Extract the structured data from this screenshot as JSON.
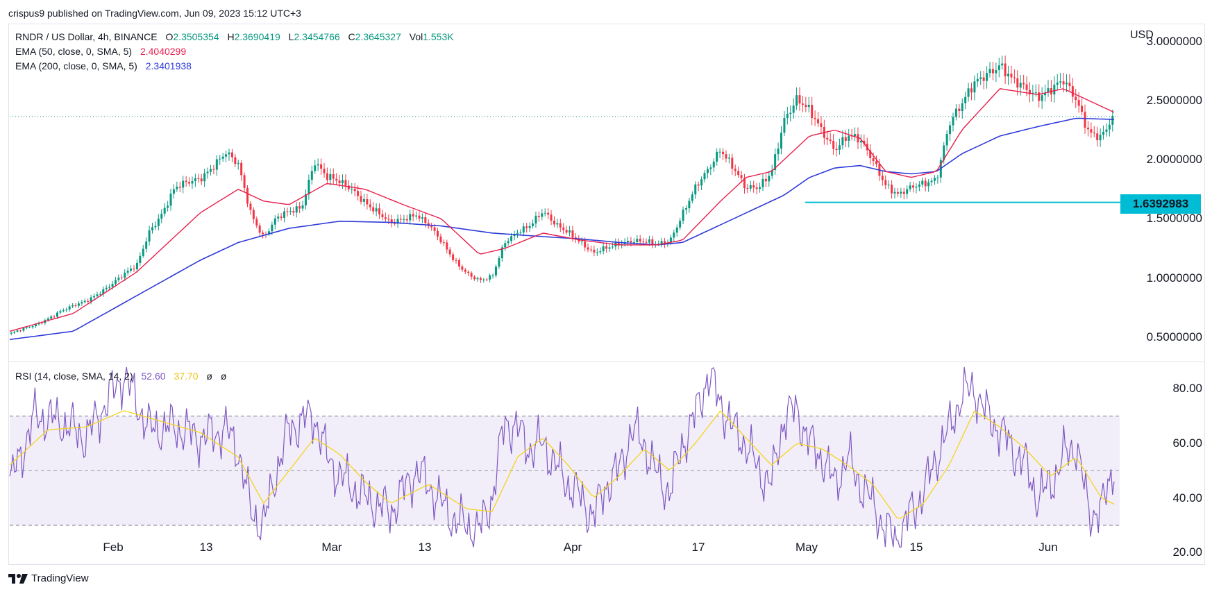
{
  "header": {
    "published_by": "crispus9 published on TradingView.com, Jun 09, 2023 15:12 UTC+3"
  },
  "legend": {
    "symbol": "RNDR / US Dollar, 4h, BINANCE",
    "o_key": "O",
    "o_val": "2.3505354",
    "h_key": "H",
    "h_val": "2.3690419",
    "l_key": "L",
    "l_val": "2.3454766",
    "c_key": "C",
    "c_val": "2.3645327",
    "vol_key": "Vol",
    "vol_val": "1.553K",
    "ema50_label": "EMA (50, close, 0, SMA, 5)",
    "ema50_val": "2.4040299",
    "ema200_label": "EMA (200, close, 0, SMA, 5)",
    "ema200_val": "2.3401938",
    "rsi_label": "RSI (14, close, SMA, 14, 2)",
    "rsi_val": "52.60",
    "rsi_ma_val": "37.70",
    "rsi_null1": "ø",
    "rsi_null2": "ø"
  },
  "currency": "USD",
  "price_tag": "1.6392983",
  "colors": {
    "up": "#089981",
    "down": "#f23645",
    "ema50": "#e91e4b",
    "ema200": "#2f3bd9",
    "rsi": "#7e57c2",
    "rsi_ma": "#f5d31c",
    "support": "#00bcd4",
    "ema50_val": "#e91e4b",
    "ema200_val": "#2f3bd9"
  },
  "footer": {
    "brand": "TradingView"
  },
  "chart_data": [
    {
      "type": "candlestick",
      "title": "RNDR / US Dollar, 4h, BINANCE",
      "y_ticks": [
        "3.0000000",
        "2.5000000",
        "2.0000000",
        "1.5000000",
        "1.0000000",
        "0.5000000"
      ],
      "x_ticks": [
        "Feb",
        "13",
        "Mar",
        "13",
        "Apr",
        "17",
        "May",
        "15",
        "Jun"
      ],
      "ylim": [
        0.3,
        3.15
      ],
      "current_price": 2.3645,
      "support_level": 1.6392983,
      "close_path": [
        [
          0,
          0.53
        ],
        [
          2,
          0.6
        ],
        [
          4,
          0.72
        ],
        [
          6,
          0.8
        ],
        [
          8,
          0.95
        ],
        [
          10,
          1.1
        ],
        [
          11,
          1.4
        ],
        [
          12,
          1.55
        ],
        [
          13,
          1.75
        ],
        [
          14,
          1.8
        ],
        [
          15,
          1.85
        ],
        [
          16,
          1.95
        ],
        [
          17,
          2.05
        ],
        [
          18,
          1.95
        ],
        [
          19,
          1.55
        ],
        [
          20,
          1.35
        ],
        [
          21,
          1.5
        ],
        [
          22,
          1.55
        ],
        [
          23,
          1.6
        ],
        [
          24,
          2.0
        ],
        [
          25,
          1.85
        ],
        [
          26,
          1.8
        ],
        [
          27,
          1.75
        ],
        [
          28,
          1.65
        ],
        [
          29,
          1.55
        ],
        [
          30,
          1.45
        ],
        [
          31,
          1.5
        ],
        [
          32,
          1.55
        ],
        [
          33,
          1.45
        ],
        [
          34,
          1.3
        ],
        [
          35,
          1.15
        ],
        [
          36,
          1.05
        ],
        [
          37,
          0.98
        ],
        [
          38,
          1.0
        ],
        [
          39,
          1.3
        ],
        [
          40,
          1.4
        ],
        [
          41,
          1.45
        ],
        [
          42,
          1.55
        ],
        [
          43,
          1.45
        ],
        [
          44,
          1.4
        ],
        [
          45,
          1.3
        ],
        [
          46,
          1.2
        ],
        [
          47,
          1.25
        ],
        [
          48,
          1.3
        ],
        [
          49,
          1.32
        ],
        [
          50,
          1.3
        ],
        [
          51,
          1.28
        ],
        [
          52,
          1.32
        ],
        [
          53,
          1.55
        ],
        [
          54,
          1.75
        ],
        [
          55,
          1.9
        ],
        [
          56,
          2.1
        ],
        [
          57,
          1.95
        ],
        [
          58,
          1.75
        ],
        [
          59,
          1.75
        ],
        [
          60,
          1.9
        ],
        [
          61,
          2.35
        ],
        [
          62,
          2.5
        ],
        [
          63,
          2.4
        ],
        [
          64,
          2.25
        ],
        [
          65,
          2.1
        ],
        [
          66,
          2.2
        ],
        [
          67,
          2.15
        ],
        [
          68,
          2.0
        ],
        [
          69,
          1.8
        ],
        [
          70,
          1.7
        ],
        [
          71,
          1.75
        ],
        [
          72,
          1.8
        ],
        [
          73,
          1.85
        ],
        [
          74,
          2.3
        ],
        [
          75,
          2.45
        ],
        [
          76,
          2.65
        ],
        [
          77,
          2.75
        ],
        [
          78,
          2.8
        ],
        [
          79,
          2.65
        ],
        [
          80,
          2.6
        ],
        [
          81,
          2.55
        ],
        [
          82,
          2.6
        ],
        [
          83,
          2.65
        ],
        [
          84,
          2.5
        ],
        [
          85,
          2.25
        ],
        [
          86,
          2.2
        ],
        [
          87,
          2.36
        ]
      ],
      "ema50_path": [
        [
          0,
          0.55
        ],
        [
          5,
          0.7
        ],
        [
          10,
          1.05
        ],
        [
          15,
          1.55
        ],
        [
          18,
          1.75
        ],
        [
          20,
          1.65
        ],
        [
          22,
          1.62
        ],
        [
          25,
          1.8
        ],
        [
          28,
          1.75
        ],
        [
          31,
          1.62
        ],
        [
          34,
          1.5
        ],
        [
          37,
          1.2
        ],
        [
          39,
          1.25
        ],
        [
          42,
          1.38
        ],
        [
          45,
          1.32
        ],
        [
          48,
          1.28
        ],
        [
          51,
          1.28
        ],
        [
          53,
          1.32
        ],
        [
          56,
          1.65
        ],
        [
          58,
          1.85
        ],
        [
          60,
          1.9
        ],
        [
          63,
          2.2
        ],
        [
          65,
          2.25
        ],
        [
          67,
          2.18
        ],
        [
          69,
          1.9
        ],
        [
          71,
          1.85
        ],
        [
          73,
          1.9
        ],
        [
          75,
          2.25
        ],
        [
          78,
          2.6
        ],
        [
          81,
          2.55
        ],
        [
          83,
          2.6
        ],
        [
          85,
          2.5
        ],
        [
          87,
          2.4
        ]
      ],
      "ema200_path": [
        [
          0,
          0.48
        ],
        [
          5,
          0.55
        ],
        [
          10,
          0.85
        ],
        [
          15,
          1.15
        ],
        [
          18,
          1.3
        ],
        [
          22,
          1.42
        ],
        [
          26,
          1.48
        ],
        [
          30,
          1.47
        ],
        [
          34,
          1.44
        ],
        [
          38,
          1.38
        ],
        [
          42,
          1.35
        ],
        [
          45,
          1.33
        ],
        [
          48,
          1.3
        ],
        [
          51,
          1.28
        ],
        [
          53,
          1.3
        ],
        [
          56,
          1.45
        ],
        [
          58,
          1.55
        ],
        [
          61,
          1.7
        ],
        [
          63,
          1.85
        ],
        [
          65,
          1.93
        ],
        [
          67,
          1.95
        ],
        [
          69,
          1.9
        ],
        [
          71,
          1.88
        ],
        [
          73,
          1.9
        ],
        [
          75,
          2.05
        ],
        [
          78,
          2.2
        ],
        [
          81,
          2.28
        ],
        [
          84,
          2.35
        ],
        [
          87,
          2.34
        ]
      ]
    },
    {
      "type": "line",
      "title": "RSI (14, close, SMA, 14, 2)",
      "y_ticks": [
        "80.00",
        "60.00",
        "40.00",
        "20.00"
      ],
      "ylim": [
        16,
        90
      ],
      "upper_band": 70,
      "middle_band": 50,
      "lower_band": 30,
      "rsi_last": 52.6,
      "rsi_ma_last": 37.7,
      "rsi_path": [
        [
          0,
          45
        ],
        [
          2,
          70
        ],
        [
          4,
          68
        ],
        [
          6,
          62
        ],
        [
          8,
          78
        ],
        [
          9,
          85
        ],
        [
          11,
          65
        ],
        [
          13,
          66
        ],
        [
          15,
          62
        ],
        [
          17,
          65
        ],
        [
          18,
          58
        ],
        [
          19,
          35
        ],
        [
          20,
          30
        ],
        [
          21,
          50
        ],
        [
          22,
          65
        ],
        [
          23,
          68
        ],
        [
          24,
          70
        ],
        [
          25,
          55
        ],
        [
          26,
          48
        ],
        [
          28,
          40
        ],
        [
          30,
          35
        ],
        [
          32,
          50
        ],
        [
          33,
          45
        ],
        [
          34,
          38
        ],
        [
          35,
          32
        ],
        [
          36,
          30
        ],
        [
          37,
          28
        ],
        [
          38,
          40
        ],
        [
          39,
          68
        ],
        [
          40,
          65
        ],
        [
          41,
          58
        ],
        [
          42,
          60
        ],
        [
          43,
          52
        ],
        [
          44,
          45
        ],
        [
          45,
          40
        ],
        [
          46,
          33
        ],
        [
          47,
          45
        ],
        [
          48,
          50
        ],
        [
          49,
          65
        ],
        [
          50,
          60
        ],
        [
          51,
          48
        ],
        [
          52,
          42
        ],
        [
          53,
          60
        ],
        [
          54,
          70
        ],
        [
          55,
          85
        ],
        [
          56,
          75
        ],
        [
          57,
          65
        ],
        [
          58,
          60
        ],
        [
          59,
          50
        ],
        [
          60,
          45
        ],
        [
          61,
          70
        ],
        [
          62,
          72
        ],
        [
          63,
          60
        ],
        [
          64,
          55
        ],
        [
          65,
          45
        ],
        [
          66,
          55
        ],
        [
          67,
          45
        ],
        [
          68,
          38
        ],
        [
          69,
          28
        ],
        [
          70,
          25
        ],
        [
          71,
          35
        ],
        [
          72,
          42
        ],
        [
          73,
          55
        ],
        [
          74,
          65
        ],
        [
          75,
          78
        ],
        [
          76,
          80
        ],
        [
          77,
          70
        ],
        [
          78,
          65
        ],
        [
          79,
          58
        ],
        [
          80,
          52
        ],
        [
          81,
          40
        ],
        [
          82,
          45
        ],
        [
          83,
          55
        ],
        [
          84,
          60
        ],
        [
          85,
          35
        ],
        [
          86,
          35
        ],
        [
          87,
          53
        ]
      ],
      "rsi_ma_path": [
        [
          0,
          52
        ],
        [
          3,
          65
        ],
        [
          6,
          66
        ],
        [
          9,
          72
        ],
        [
          12,
          68
        ],
        [
          15,
          64
        ],
        [
          18,
          55
        ],
        [
          20,
          38
        ],
        [
          22,
          50
        ],
        [
          24,
          62
        ],
        [
          26,
          56
        ],
        [
          28,
          46
        ],
        [
          30,
          38
        ],
        [
          33,
          45
        ],
        [
          36,
          36
        ],
        [
          38,
          35
        ],
        [
          40,
          55
        ],
        [
          42,
          62
        ],
        [
          44,
          52
        ],
        [
          46,
          40
        ],
        [
          48,
          48
        ],
        [
          50,
          58
        ],
        [
          52,
          50
        ],
        [
          54,
          60
        ],
        [
          56,
          72
        ],
        [
          58,
          62
        ],
        [
          60,
          52
        ],
        [
          62,
          60
        ],
        [
          64,
          58
        ],
        [
          66,
          52
        ],
        [
          68,
          45
        ],
        [
          70,
          32
        ],
        [
          72,
          38
        ],
        [
          74,
          52
        ],
        [
          76,
          72
        ],
        [
          78,
          66
        ],
        [
          80,
          58
        ],
        [
          82,
          48
        ],
        [
          84,
          55
        ],
        [
          86,
          40
        ],
        [
          87,
          37.7
        ]
      ]
    }
  ]
}
